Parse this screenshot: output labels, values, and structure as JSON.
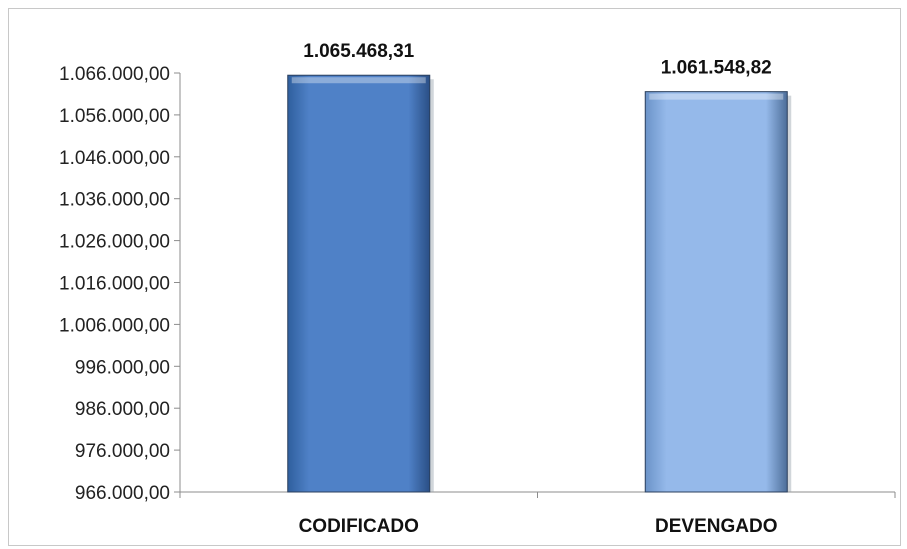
{
  "chart_data": {
    "type": "bar",
    "categories": [
      "CODIFICADO",
      "DEVENGADO"
    ],
    "values": [
      1065468.31,
      1061548.82
    ],
    "value_labels": [
      "1.065.468,31",
      "1.061.548,82"
    ],
    "ylim": [
      966000,
      1066000
    ],
    "yticks": [
      966000,
      976000,
      986000,
      996000,
      1006000,
      1016000,
      1026000,
      1036000,
      1046000,
      1056000,
      1066000
    ],
    "ytick_labels": [
      "966.000,00",
      "976.000,00",
      "986.000,00",
      "996.000,00",
      "1.006.000,00",
      "1.016.000,00",
      "1.026.000,00",
      "1.036.000,00",
      "1.046.000,00",
      "1.056.000,00",
      "1.066.000,00"
    ],
    "grid": false,
    "legend": "none",
    "colors": [
      "#4f81c7",
      "#95b9ea"
    ],
    "title": "",
    "xlabel": "",
    "ylabel": ""
  }
}
